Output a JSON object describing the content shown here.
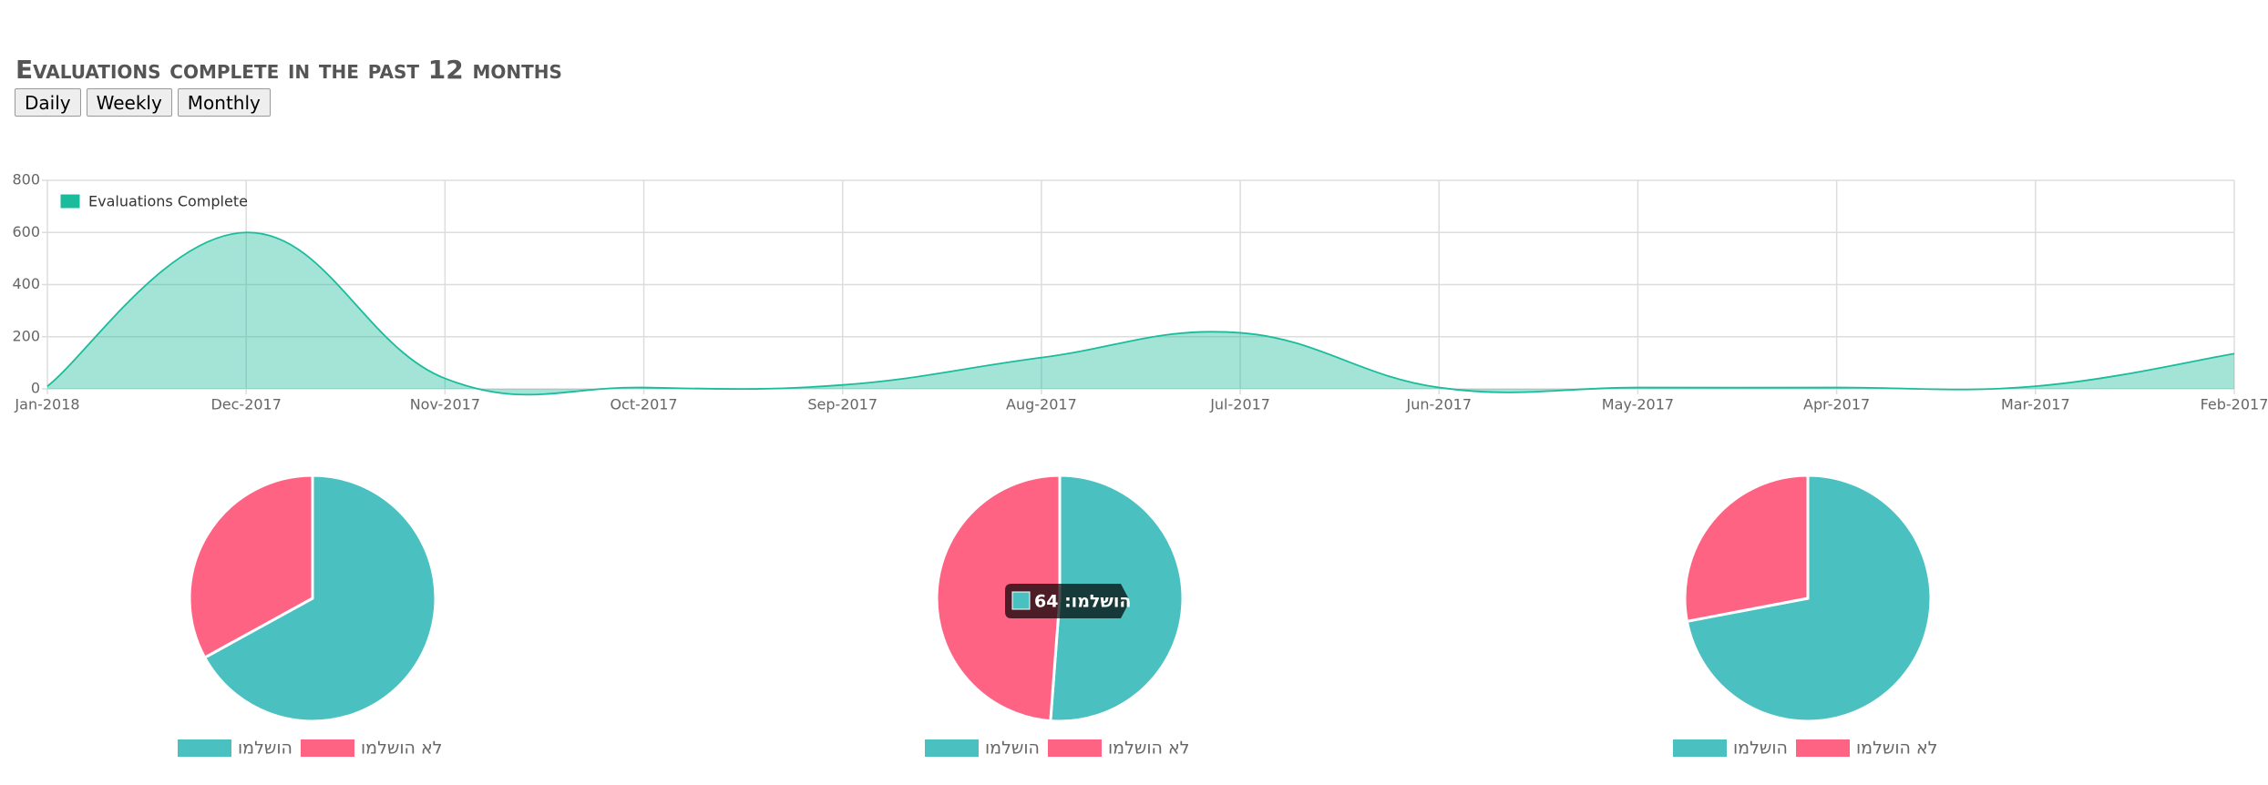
{
  "title": "Evaluations complete in the past 12 months",
  "buttons": [
    "Daily",
    "Weekly",
    "Monthly"
  ],
  "chart_data": [
    {
      "type": "area",
      "categories": [
        "Jan-2018",
        "Dec-2017",
        "Nov-2017",
        "Oct-2017",
        "Sep-2017",
        "Aug-2017",
        "Jul-2017",
        "Jun-2017",
        "May-2017",
        "Apr-2017",
        "Mar-2017",
        "Feb-2017"
      ],
      "series": [
        {
          "name": "Evaluations Complete",
          "color": "#1abc9c",
          "values": [
            10,
            600,
            40,
            5,
            15,
            120,
            215,
            5,
            5,
            5,
            10,
            135
          ]
        }
      ],
      "ylim": [
        0,
        800
      ],
      "yticks": [
        0,
        200,
        400,
        600,
        800
      ],
      "grid": true,
      "legend": "top-left"
    },
    {
      "type": "pie",
      "categories": [
        "הושלמו",
        "לא הושלמו"
      ],
      "colors": [
        "#4bc0c0",
        "#ff6384"
      ],
      "values": [
        67,
        33
      ]
    },
    {
      "type": "pie",
      "categories": [
        "הושלמו",
        "לא הושלמו"
      ],
      "colors": [
        "#4bc0c0",
        "#ff6384"
      ],
      "values": [
        64,
        61
      ],
      "tooltip": "הושלמו: 64"
    },
    {
      "type": "pie",
      "categories": [
        "הושלמו",
        "לא הושלמו"
      ],
      "colors": [
        "#4bc0c0",
        "#ff6384"
      ],
      "values": [
        72,
        28
      ]
    }
  ]
}
